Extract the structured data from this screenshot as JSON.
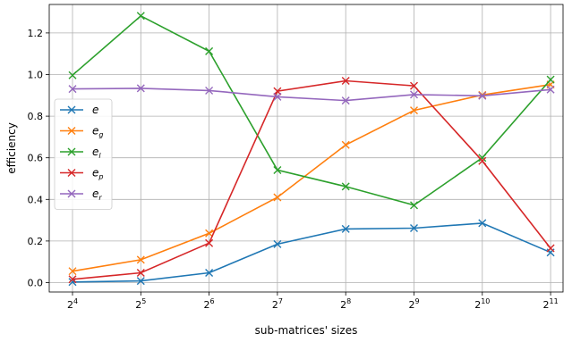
{
  "chart_data": {
    "type": "line",
    "xlabel": "sub-matrices' sizes",
    "ylabel": "efficiency",
    "x_base": "2",
    "x_exponents": [
      "4",
      "5",
      "6",
      "7",
      "8",
      "9",
      "10",
      "11"
    ],
    "xscale": "log2",
    "y_ticks": [
      "0.0",
      "0.2",
      "0.4",
      "0.6",
      "0.8",
      "1.0",
      "1.2"
    ],
    "ylim": [
      -0.065,
      1.34
    ],
    "grid": true,
    "legend_position": "center-left",
    "marker": "x",
    "series": [
      {
        "name": "e",
        "subscript": "",
        "color": "#1f77b4",
        "values": [
          0.003,
          0.008,
          0.047,
          0.185,
          0.258,
          0.262,
          0.286,
          0.145
        ]
      },
      {
        "name": "e",
        "subscript": "g",
        "color": "#ff7f0e",
        "values": [
          0.055,
          0.11,
          0.237,
          0.41,
          0.662,
          0.828,
          0.902,
          0.952
        ]
      },
      {
        "name": "e",
        "subscript": "l",
        "color": "#2ca02c",
        "values": [
          0.997,
          1.282,
          1.112,
          0.541,
          0.462,
          0.372,
          0.6,
          0.976
        ]
      },
      {
        "name": "e",
        "subscript": "p",
        "color": "#d62728",
        "values": [
          0.016,
          0.047,
          0.19,
          0.92,
          0.97,
          0.946,
          0.585,
          0.165
        ]
      },
      {
        "name": "e",
        "subscript": "r",
        "color": "#9467bd",
        "values": [
          0.931,
          0.934,
          0.923,
          0.893,
          0.875,
          0.904,
          0.898,
          0.928
        ]
      }
    ]
  }
}
